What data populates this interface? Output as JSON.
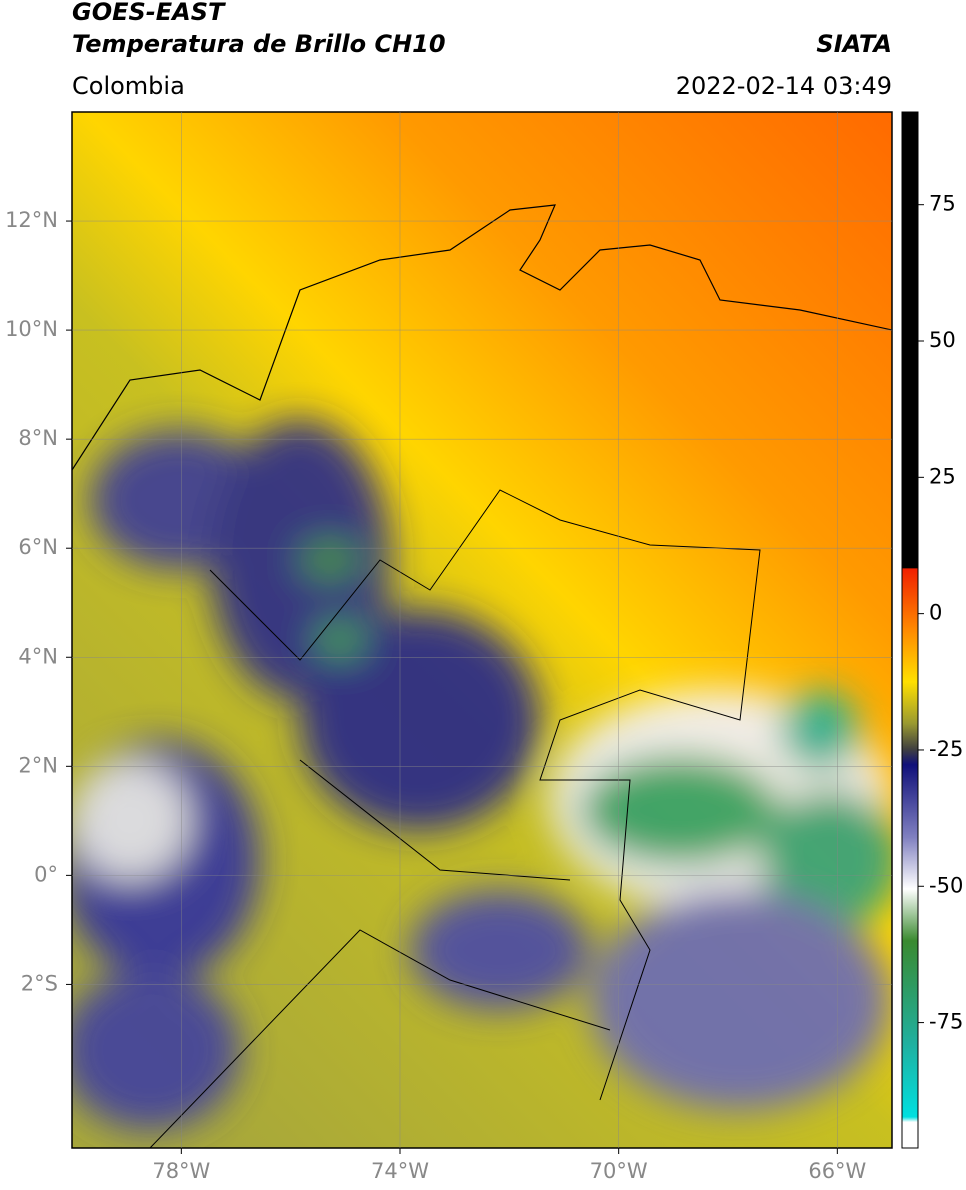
{
  "header": {
    "title": "GOES-EAST",
    "subtitle": "Temperatura de Brillo CH10",
    "region": "Colombia",
    "source": "SIATA",
    "datetime": "2022-02-14 03:49"
  },
  "chart_data": {
    "type": "map",
    "xlim": [
      -80,
      -65
    ],
    "ylim": [
      -5,
      14
    ],
    "xticks": [
      {
        "value": -78,
        "label": "78°W"
      },
      {
        "value": -74,
        "label": "74°W"
      },
      {
        "value": -70,
        "label": "70°W"
      },
      {
        "value": -66,
        "label": "66°W"
      }
    ],
    "yticks": [
      {
        "value": 12,
        "label": "12°N"
      },
      {
        "value": 10,
        "label": "10°N"
      },
      {
        "value": 8,
        "label": "8°N"
      },
      {
        "value": 6,
        "label": "6°N"
      },
      {
        "value": 4,
        "label": "4°N"
      },
      {
        "value": 2,
        "label": "2°N"
      },
      {
        "value": 0,
        "label": "0°"
      },
      {
        "value": -2,
        "label": "2°S"
      }
    ],
    "grid": true,
    "colorbar": {
      "clim": [
        -98,
        92
      ],
      "ticks": [
        75,
        50,
        25,
        0,
        -25,
        -50,
        -75
      ]
    }
  }
}
